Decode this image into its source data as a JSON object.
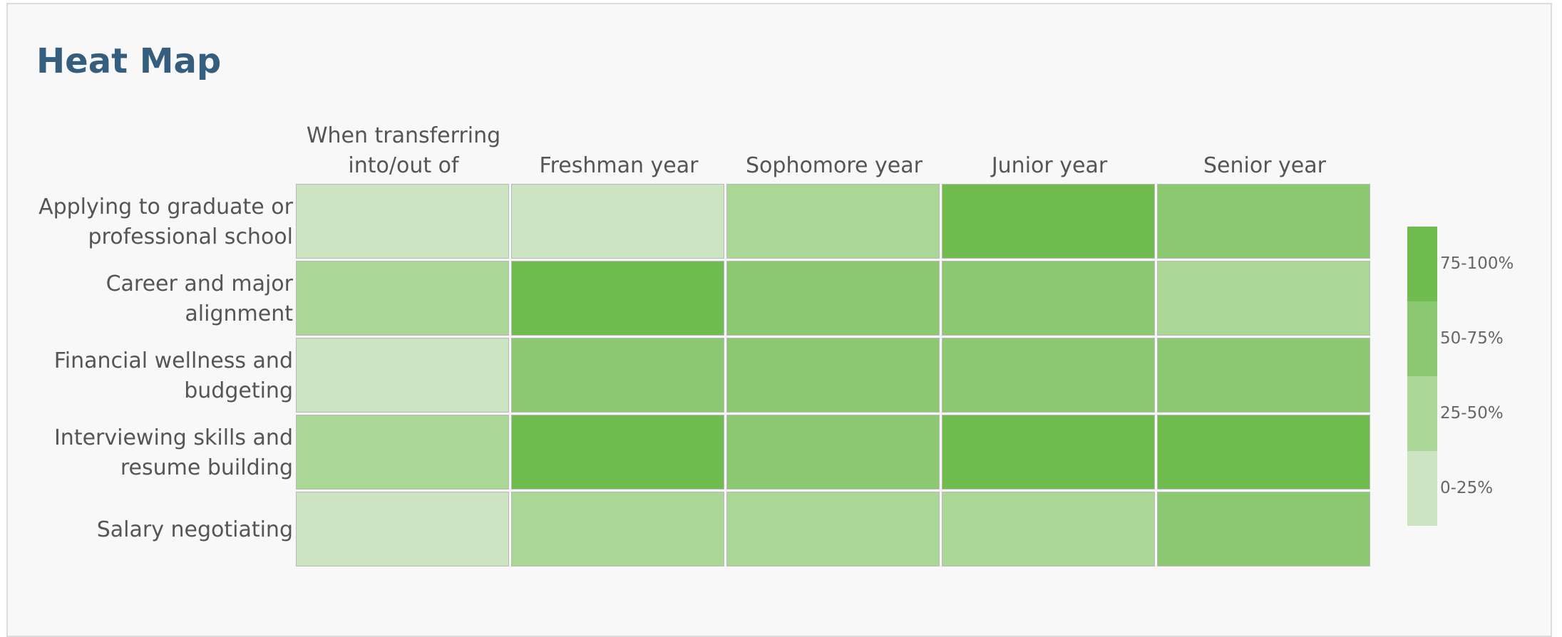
{
  "chart_data": {
    "type": "heatmap",
    "title": "Heat Map",
    "x_categories": [
      "When transferring into/out of",
      "Freshman year",
      "Sophomore year",
      "Junior year",
      "Senior year"
    ],
    "y_categories": [
      "Applying to graduate or professional school",
      "Career and major alignment",
      "Financial wellness and budgeting",
      "Interviewing skills and resume building",
      "Salary negotiating"
    ],
    "values": [
      [
        12.5,
        12.5,
        37.5,
        87.5,
        62.5
      ],
      [
        37.5,
        87.5,
        62.5,
        62.5,
        37.5
      ],
      [
        12.5,
        62.5,
        62.5,
        62.5,
        62.5
      ],
      [
        37.5,
        87.5,
        62.5,
        87.5,
        87.5
      ],
      [
        12.5,
        37.5,
        37.5,
        37.5,
        62.5
      ]
    ],
    "legend": {
      "bins": [
        0,
        25,
        50,
        75,
        100
      ],
      "labels": [
        "0-25%",
        "25-50%",
        "50-75%",
        "75-100%"
      ],
      "colors": [
        "#cde4c3",
        "#abd796",
        "#8bc86f",
        "#70bc4f"
      ]
    }
  }
}
